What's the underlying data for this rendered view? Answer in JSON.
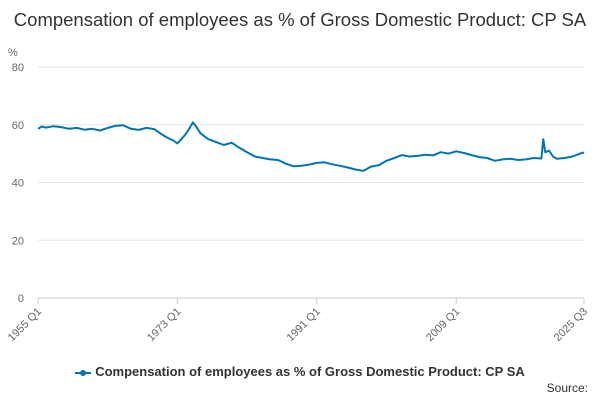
{
  "chart_data": {
    "type": "line",
    "title": "Compensation of employees as % of Gross Domestic Product: CP SA",
    "unit_label": "%",
    "ylim": [
      0,
      80
    ],
    "yticks": [
      0,
      20,
      40,
      60,
      80
    ],
    "xlim": [
      1955.0,
      2025.5
    ],
    "xticks": [
      {
        "label": "1955 Q1",
        "t": 1955.0
      },
      {
        "label": "1973 Q1",
        "t": 1973.0
      },
      {
        "label": "1991 Q1",
        "t": 1991.0
      },
      {
        "label": "2009 Q1",
        "t": 2009.0
      },
      {
        "label": "2025 Q3",
        "t": 2025.5
      }
    ],
    "grid": true,
    "legend_position": "bottom",
    "series": [
      {
        "name": "Compensation of employees as % of Gross Domestic Product: CP SA",
        "color": "#0075b4",
        "points": [
          [
            1955.0,
            58.6
          ],
          [
            1955.5,
            59.4
          ],
          [
            1956.0,
            59.0
          ],
          [
            1957.0,
            59.5
          ],
          [
            1958.0,
            59.2
          ],
          [
            1959.0,
            58.6
          ],
          [
            1960.0,
            58.9
          ],
          [
            1961.0,
            58.3
          ],
          [
            1962.0,
            58.6
          ],
          [
            1963.0,
            58.0
          ],
          [
            1964.0,
            58.9
          ],
          [
            1965.0,
            59.6
          ],
          [
            1966.0,
            59.8
          ],
          [
            1967.0,
            58.6
          ],
          [
            1968.0,
            58.2
          ],
          [
            1969.0,
            58.9
          ],
          [
            1970.0,
            58.5
          ],
          [
            1970.8,
            57.0
          ],
          [
            1971.5,
            55.8
          ],
          [
            1972.5,
            54.5
          ],
          [
            1973.0,
            53.5
          ],
          [
            1973.5,
            55.0
          ],
          [
            1974.0,
            56.5
          ],
          [
            1974.5,
            58.5
          ],
          [
            1975.0,
            60.8
          ],
          [
            1975.5,
            59.0
          ],
          [
            1976.0,
            57.0
          ],
          [
            1977.0,
            55.0
          ],
          [
            1978.0,
            54.0
          ],
          [
            1979.0,
            53.0
          ],
          [
            1980.0,
            53.8
          ],
          [
            1981.0,
            52.0
          ],
          [
            1982.0,
            50.5
          ],
          [
            1983.0,
            49.0
          ],
          [
            1984.0,
            48.5
          ],
          [
            1985.0,
            48.0
          ],
          [
            1986.0,
            47.8
          ],
          [
            1987.0,
            46.5
          ],
          [
            1988.0,
            45.6
          ],
          [
            1989.0,
            45.8
          ],
          [
            1990.0,
            46.2
          ],
          [
            1991.0,
            46.8
          ],
          [
            1992.0,
            47.0
          ],
          [
            1993.0,
            46.3
          ],
          [
            1994.0,
            45.8
          ],
          [
            1995.0,
            45.2
          ],
          [
            1996.0,
            44.5
          ],
          [
            1997.0,
            44.0
          ],
          [
            1998.0,
            45.5
          ],
          [
            1999.0,
            46.0
          ],
          [
            2000.0,
            47.5
          ],
          [
            2001.0,
            48.5
          ],
          [
            2002.0,
            49.5
          ],
          [
            2003.0,
            49.0
          ],
          [
            2004.0,
            49.2
          ],
          [
            2005.0,
            49.6
          ],
          [
            2006.0,
            49.4
          ],
          [
            2007.0,
            50.5
          ],
          [
            2008.0,
            50.0
          ],
          [
            2009.0,
            50.8
          ],
          [
            2010.0,
            50.2
          ],
          [
            2011.0,
            49.5
          ],
          [
            2012.0,
            48.8
          ],
          [
            2013.0,
            48.5
          ],
          [
            2014.0,
            47.5
          ],
          [
            2015.0,
            48.0
          ],
          [
            2016.0,
            48.2
          ],
          [
            2017.0,
            47.8
          ],
          [
            2018.0,
            48.0
          ],
          [
            2019.0,
            48.5
          ],
          [
            2020.0,
            48.3
          ],
          [
            2020.25,
            55.0
          ],
          [
            2020.5,
            50.5
          ],
          [
            2021.0,
            51.0
          ],
          [
            2021.5,
            49.0
          ],
          [
            2022.0,
            48.2
          ],
          [
            2023.0,
            48.5
          ],
          [
            2024.0,
            49.0
          ],
          [
            2025.0,
            50.0
          ],
          [
            2025.5,
            50.4
          ]
        ]
      }
    ]
  },
  "source_label": "Source:"
}
